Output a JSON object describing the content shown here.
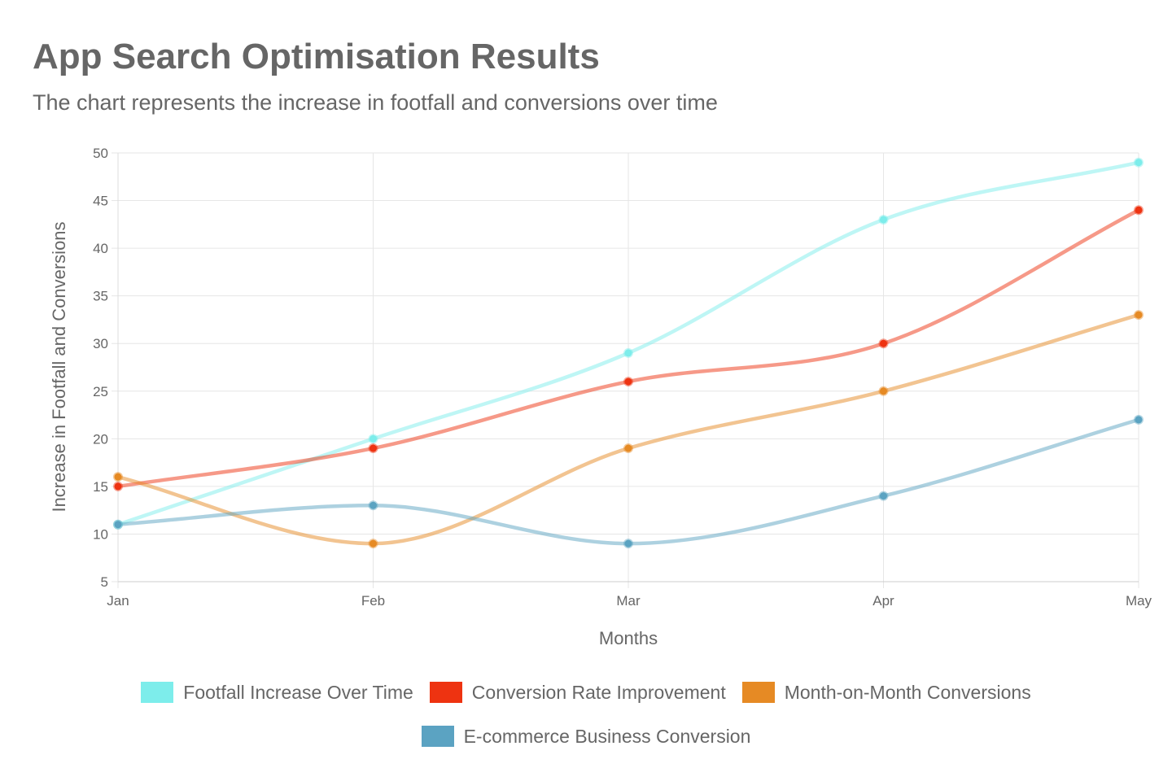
{
  "header": {
    "title": "App Search Optimisation Results",
    "subtitle": "The chart represents the increase in footfall and conversions over time"
  },
  "chart_data": {
    "type": "line",
    "categories": [
      "Jan",
      "Feb",
      "Mar",
      "Apr",
      "May"
    ],
    "ylim": [
      5,
      50
    ],
    "ytick_step": 5,
    "grid": true,
    "xlabel": "Months",
    "ylabel": "Increase in Footfall and Conversions",
    "legend_position": "bottom",
    "series": [
      {
        "name": "Footfall Increase Over Time",
        "values": [
          11,
          20,
          29,
          43,
          49
        ],
        "color": "#7DEDEB"
      },
      {
        "name": "Conversion Rate Improvement",
        "values": [
          15,
          19,
          26,
          30,
          44
        ],
        "color": "#EE3311"
      },
      {
        "name": "Month-on-Month Conversions",
        "values": [
          16,
          9,
          19,
          25,
          33
        ],
        "color": "#E68A24"
      },
      {
        "name": "E-commerce Business Conversion",
        "values": [
          11,
          13,
          9,
          14,
          22
        ],
        "color": "#5BA3C2"
      }
    ]
  }
}
